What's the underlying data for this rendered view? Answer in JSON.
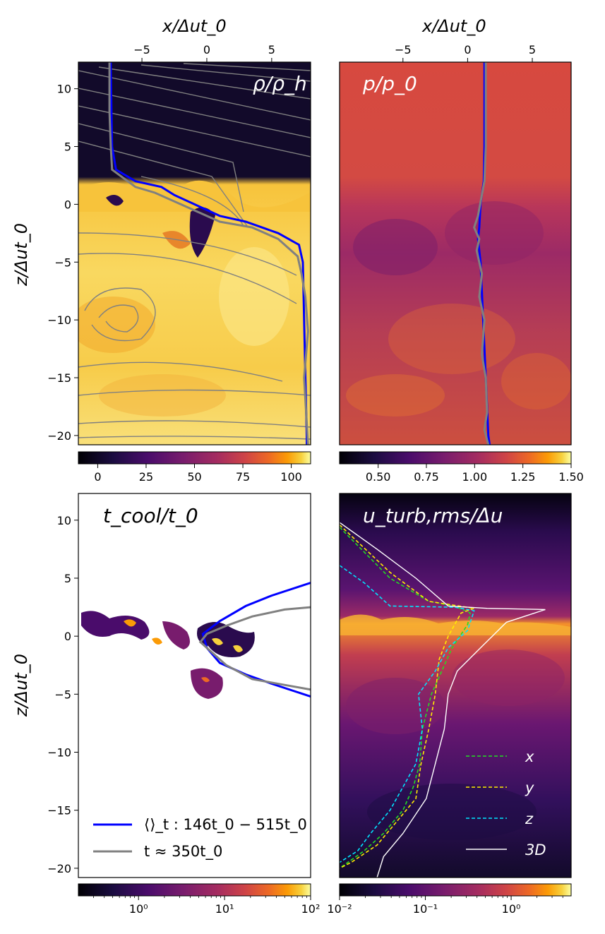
{
  "chart_data": [
    {
      "type": "heatmap",
      "panel": "top-left",
      "title": "ρ/ρ_h",
      "title_color": "#ffffff",
      "top_xlabel": "x/Δut_0",
      "ylabel": "z/Δut_0",
      "xlim": [
        -9.9,
        8.0
      ],
      "ylim": [
        -20.8,
        12.3
      ],
      "x_ticks": [
        -5,
        0,
        5
      ],
      "x_tick_labels": [
        "−5",
        "0",
        "5"
      ],
      "y_ticks": [
        10,
        5,
        0,
        -5,
        -10,
        -15,
        -20
      ],
      "y_tick_labels": [
        "10",
        "5",
        "0",
        "−5",
        "−10",
        "−15",
        "−20"
      ],
      "colormap": "inferno-like",
      "colorbar": {
        "min": -10,
        "max": 110,
        "ticks": [
          0,
          25,
          50,
          75,
          100
        ],
        "tick_labels": [
          "0",
          "25",
          "50",
          "75",
          "100"
        ],
        "scale": "linear"
      },
      "overlay": "streamlines (gray)",
      "profiles": [
        {
          "name": "time-averaged",
          "color": "#0000ff",
          "points": [
            [
              -7.4,
              12.3
            ],
            [
              -7.35,
              8
            ],
            [
              -7.3,
              5
            ],
            [
              -7,
              3
            ],
            [
              -5.5,
              2
            ],
            [
              -3.5,
              1.5
            ],
            [
              -2.5,
              0.8
            ],
            [
              1,
              -1
            ],
            [
              3,
              -1.5
            ],
            [
              5.5,
              -2.5
            ],
            [
              7.1,
              -3.5
            ],
            [
              7.4,
              -5
            ],
            [
              7.5,
              -10
            ],
            [
              7.6,
              -15
            ],
            [
              7.7,
              -20
            ],
            [
              7.7,
              -20.8
            ]
          ]
        },
        {
          "name": "t≈350t0",
          "color": "#808080",
          "points": [
            [
              -7.5,
              12.3
            ],
            [
              -7.5,
              8
            ],
            [
              -7.4,
              5
            ],
            [
              -7.3,
              3
            ],
            [
              -5.5,
              1.5
            ],
            [
              -4,
              1
            ],
            [
              -2,
              0
            ],
            [
              1,
              -1.5
            ],
            [
              3.5,
              -2
            ],
            [
              5.5,
              -3
            ],
            [
              7,
              -4.5
            ],
            [
              7.3,
              -6
            ],
            [
              7.6,
              -8
            ],
            [
              7.8,
              -11
            ],
            [
              7.5,
              -15
            ],
            [
              7.8,
              -20.8
            ]
          ]
        }
      ]
    },
    {
      "type": "heatmap",
      "panel": "top-right",
      "title": "p/p_0",
      "title_color": "#ffffff",
      "top_xlabel": "x/Δut_0",
      "xlim": [
        -9.9,
        8.0
      ],
      "ylim": [
        -20.8,
        12.3
      ],
      "x_ticks": [
        -5,
        0,
        5
      ],
      "x_tick_labels": [
        "−5",
        "0",
        "5"
      ],
      "colormap": "inferno-like",
      "colorbar": {
        "min": 0.3,
        "max": 1.5,
        "ticks": [
          0.5,
          0.75,
          1.0,
          1.25,
          1.5
        ],
        "tick_labels": [
          "0.50",
          "0.75",
          "1.00",
          "1.25",
          "1.50"
        ],
        "scale": "linear"
      },
      "profiles": [
        {
          "name": "time-averaged",
          "color": "#0000ff",
          "points": [
            [
              1.3,
              12.3
            ],
            [
              1.3,
              5
            ],
            [
              1.25,
              2
            ],
            [
              1.0,
              0
            ],
            [
              0.9,
              -2
            ],
            [
              0.8,
              -3
            ],
            [
              1.0,
              -5
            ],
            [
              1.2,
              -10
            ],
            [
              1.4,
              -15
            ],
            [
              1.6,
              -20
            ],
            [
              1.7,
              -20.8
            ]
          ]
        },
        {
          "name": "t≈350t0",
          "color": "#808080",
          "points": [
            [
              1.4,
              12.3
            ],
            [
              1.4,
              5
            ],
            [
              1.3,
              2
            ],
            [
              0.8,
              -1
            ],
            [
              0.5,
              -2
            ],
            [
              0.9,
              -3
            ],
            [
              0.7,
              -4
            ],
            [
              1.1,
              -6
            ],
            [
              0.9,
              -8
            ],
            [
              1.3,
              -10
            ],
            [
              1.1,
              -13
            ],
            [
              1.4,
              -15
            ],
            [
              1.5,
              -18
            ],
            [
              1.3,
              -19.5
            ],
            [
              1.6,
              -20.8
            ]
          ]
        }
      ]
    },
    {
      "type": "heatmap",
      "panel": "bottom-left",
      "title": "t_cool/t_0",
      "title_color": "#000000",
      "ylabel": "z/Δut_0",
      "xlim": [
        -9.9,
        8.0
      ],
      "ylim": [
        -20.8,
        12.3
      ],
      "y_ticks": [
        10,
        5,
        0,
        -5,
        -10,
        -15,
        -20
      ],
      "y_tick_labels": [
        "10",
        "5",
        "0",
        "−5",
        "−10",
        "−15",
        "−20"
      ],
      "colormap": "inferno-like",
      "colorbar": {
        "min": 0.2,
        "max": 100,
        "scale": "log",
        "ticks": [
          1,
          10,
          100
        ],
        "tick_labels": [
          "10⁰",
          "10¹",
          "10²"
        ]
      },
      "legend": [
        {
          "label": "⟨⟩_t : 146t_0 − 515t_0",
          "color": "#0000ff"
        },
        {
          "label": "t ≈ 350t_0",
          "color": "#808080"
        }
      ],
      "profiles": [
        {
          "name": "⟨⟩_t : 146t_0 − 515t_0",
          "color": "#0000ff",
          "points": [
            [
              8,
              4.6
            ],
            [
              5,
              3.5
            ],
            [
              3,
              2.6
            ],
            [
              1,
              1.3
            ],
            [
              -0.3,
              0.2
            ],
            [
              0,
              -1
            ],
            [
              1,
              -2.3
            ],
            [
              3,
              -3.3
            ],
            [
              5,
              -4.1
            ],
            [
              8,
              -5.2
            ]
          ]
        },
        {
          "name": "t ≈ 350t_0",
          "color": "#808080",
          "points": [
            [
              8,
              2.5
            ],
            [
              6,
              2.3
            ],
            [
              3.5,
              1.7
            ],
            [
              1.5,
              0.9
            ],
            [
              0,
              0.2
            ],
            [
              -0.5,
              -0.5
            ],
            [
              0.2,
              -1.2
            ],
            [
              1.5,
              -2.5
            ],
            [
              3.5,
              -3.7
            ],
            [
              6,
              -4.2
            ],
            [
              8,
              -4.6
            ]
          ]
        }
      ]
    },
    {
      "type": "heatmap",
      "panel": "bottom-right",
      "title": "u_turb,rms/Δu",
      "title_color": "#ffffff",
      "xlim": [
        -9.9,
        8.0
      ],
      "ylim": [
        -20.8,
        12.3
      ],
      "colormap": "inferno-like",
      "colorbar": {
        "min": 0.01,
        "max": 5,
        "scale": "log",
        "ticks": [
          0.01,
          0.1,
          1
        ],
        "tick_labels": [
          "10⁻²",
          "10⁻¹",
          "10⁰"
        ]
      },
      "legend": [
        {
          "label": "x",
          "color": "#22dd22",
          "style": "dashed"
        },
        {
          "label": "y",
          "color": "#ffee00",
          "style": "dashed"
        },
        {
          "label": "z",
          "color": "#00e5ff",
          "style": "dashed"
        },
        {
          "label": "3D",
          "color": "#ffffff",
          "style": "solid"
        }
      ],
      "profiles": [
        {
          "name": "x",
          "color": "#22dd22",
          "style": "dashed",
          "points": [
            [
              -9.9,
              9.4
            ],
            [
              -6,
              5
            ],
            [
              -3,
              3
            ],
            [
              -1,
              2.6
            ],
            [
              0.2,
              2.0
            ],
            [
              0,
              1.0
            ],
            [
              -1.2,
              -1
            ],
            [
              -2,
              -3
            ],
            [
              -2.8,
              -5
            ],
            [
              -3.5,
              -8
            ],
            [
              -3.7,
              -11
            ],
            [
              -4.2,
              -13
            ],
            [
              -5,
              -15
            ],
            [
              -6.5,
              -17
            ],
            [
              -8,
              -18.5
            ],
            [
              -9.9,
              -20
            ]
          ]
        },
        {
          "name": "y",
          "color": "#ffee00",
          "style": "dashed",
          "points": [
            [
              -9.9,
              9.6
            ],
            [
              -6,
              5.5
            ],
            [
              -3,
              3
            ],
            [
              0.5,
              2.4
            ],
            [
              -0.5,
              2.0
            ],
            [
              -1.5,
              0
            ],
            [
              -2.2,
              -2
            ],
            [
              -2.5,
              -5
            ],
            [
              -3,
              -8
            ],
            [
              -3.6,
              -11
            ],
            [
              -4,
              -14
            ],
            [
              -5.5,
              -16
            ],
            [
              -7,
              -18
            ],
            [
              -9,
              -19.5
            ],
            [
              -9.9,
              -20
            ]
          ]
        },
        {
          "name": "z",
          "color": "#00e5ff",
          "style": "dashed",
          "points": [
            [
              -9.9,
              6.1
            ],
            [
              -8,
              4.6
            ],
            [
              -6,
              2.6
            ],
            [
              -1,
              2.5
            ],
            [
              0.5,
              2.2
            ],
            [
              0,
              0.5
            ],
            [
              -1.5,
              -1
            ],
            [
              -2.5,
              -3
            ],
            [
              -3.8,
              -5
            ],
            [
              -3.5,
              -8
            ],
            [
              -4,
              -11
            ],
            [
              -5,
              -13
            ],
            [
              -6,
              -15
            ],
            [
              -7.5,
              -17
            ],
            [
              -8.5,
              -18.5
            ],
            [
              -9.9,
              -19.5
            ]
          ]
        },
        {
          "name": "3D",
          "color": "#ffffff",
          "style": "solid",
          "points": [
            [
              -9.9,
              9.8
            ],
            [
              -7,
              7.5
            ],
            [
              -4,
              5
            ],
            [
              -1.5,
              2.6
            ],
            [
              1.5,
              2.4
            ],
            [
              6,
              2.3
            ],
            [
              3,
              1.2
            ],
            [
              1,
              -1
            ],
            [
              -0.8,
              -3
            ],
            [
              -1.5,
              -5
            ],
            [
              -1.8,
              -8
            ],
            [
              -2.5,
              -11
            ],
            [
              -3.2,
              -14
            ],
            [
              -5,
              -17
            ],
            [
              -6.5,
              -19
            ],
            [
              -7,
              -20.8
            ]
          ]
        }
      ]
    }
  ]
}
